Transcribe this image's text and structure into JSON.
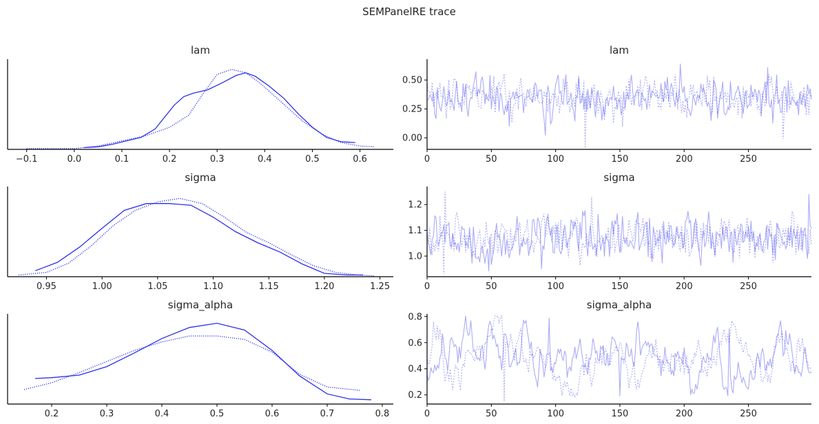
{
  "figure": {
    "title": "SEMPanelRE trace"
  },
  "chart_data": [
    {
      "type": "line",
      "panel": "kde",
      "title": "lam",
      "xlim": [
        -0.14,
        0.67
      ],
      "xticks": [
        -0.1,
        0.0,
        0.1,
        0.2,
        0.3,
        0.4,
        0.5,
        0.6
      ],
      "xtick_labels": [
        "−0.1",
        "0.0",
        "0.1",
        "0.2",
        "0.3",
        "0.4",
        "0.5",
        "0.6"
      ],
      "ylim": [
        0,
        1.06
      ],
      "color": "#2a2eec",
      "series": [
        {
          "style": "solid",
          "x": [
            0.02,
            0.05,
            0.08,
            0.11,
            0.14,
            0.17,
            0.19,
            0.21,
            0.23,
            0.25,
            0.28,
            0.31,
            0.34,
            0.36,
            0.38,
            0.41,
            0.44,
            0.47,
            0.5,
            0.53,
            0.56,
            0.59
          ],
          "y": [
            0.02,
            0.03,
            0.06,
            0.1,
            0.14,
            0.24,
            0.38,
            0.52,
            0.62,
            0.66,
            0.7,
            0.78,
            0.87,
            0.9,
            0.86,
            0.74,
            0.6,
            0.42,
            0.26,
            0.14,
            0.09,
            0.08
          ]
        },
        {
          "style": "dotted",
          "x": [
            -0.1,
            -0.05,
            0.0,
            0.05,
            0.1,
            0.15,
            0.2,
            0.24,
            0.27,
            0.3,
            0.33,
            0.36,
            0.39,
            0.42,
            0.45,
            0.48,
            0.52,
            0.56,
            0.6,
            0.63
          ],
          "y": [
            0.01,
            0.01,
            0.01,
            0.04,
            0.1,
            0.16,
            0.26,
            0.4,
            0.65,
            0.88,
            0.94,
            0.9,
            0.78,
            0.63,
            0.48,
            0.33,
            0.18,
            0.08,
            0.04,
            0.03
          ]
        }
      ]
    },
    {
      "type": "line",
      "panel": "trace",
      "title": "lam",
      "xlim": [
        0,
        299
      ],
      "xticks": [
        0,
        50,
        100,
        150,
        200,
        250
      ],
      "xtick_labels": [
        "0",
        "50",
        "100",
        "150",
        "200",
        "250"
      ],
      "ylim": [
        -0.1,
        0.68
      ],
      "yticks": [
        0.0,
        0.25,
        0.5
      ],
      "ytick_labels": [
        "0.00",
        "0.25",
        "0.50"
      ],
      "n": 300,
      "center": 0.35,
      "spread": 0.09,
      "extremes": [
        {
          "chain": 2,
          "index": 123,
          "value": -0.09
        },
        {
          "chain": 1,
          "index": 197,
          "value": 0.64
        },
        {
          "chain": 1,
          "index": 92,
          "value": 0.02
        },
        {
          "chain": 2,
          "index": 277,
          "value": -0.01
        },
        {
          "chain": 1,
          "index": 265,
          "value": 0.61
        }
      ],
      "color": "#2a2eec"
    },
    {
      "type": "line",
      "panel": "kde",
      "title": "sigma",
      "xlim": [
        0.915,
        1.262
      ],
      "xticks": [
        0.95,
        1.0,
        1.05,
        1.1,
        1.15,
        1.2,
        1.25
      ],
      "xtick_labels": [
        "0.95",
        "1.00",
        "1.05",
        "1.10",
        "1.15",
        "1.20",
        "1.25"
      ],
      "ylim": [
        0,
        1.06
      ],
      "color": "#2a2eec",
      "series": [
        {
          "style": "solid",
          "x": [
            0.94,
            0.96,
            0.98,
            1.0,
            1.02,
            1.04,
            1.06,
            1.08,
            1.1,
            1.12,
            1.14,
            1.16,
            1.18,
            1.2,
            1.22,
            1.235
          ],
          "y": [
            0.07,
            0.17,
            0.35,
            0.57,
            0.78,
            0.86,
            0.86,
            0.84,
            0.7,
            0.53,
            0.4,
            0.29,
            0.15,
            0.04,
            0.02,
            0.02
          ]
        },
        {
          "style": "dotted",
          "x": [
            0.925,
            0.95,
            0.97,
            0.99,
            1.01,
            1.03,
            1.05,
            1.07,
            1.09,
            1.11,
            1.13,
            1.15,
            1.17,
            1.19,
            1.21,
            1.23,
            1.245
          ],
          "y": [
            0.02,
            0.05,
            0.16,
            0.36,
            0.6,
            0.78,
            0.88,
            0.92,
            0.86,
            0.7,
            0.52,
            0.4,
            0.26,
            0.13,
            0.05,
            0.02,
            0.01
          ]
        }
      ]
    },
    {
      "type": "line",
      "panel": "trace",
      "title": "sigma",
      "xlim": [
        0,
        299
      ],
      "xticks": [
        0,
        50,
        100,
        150,
        200,
        250
      ],
      "xtick_labels": [
        "0",
        "50",
        "100",
        "150",
        "200",
        "250"
      ],
      "ylim": [
        0.92,
        1.27
      ],
      "yticks": [
        1.0,
        1.1,
        1.2
      ],
      "ytick_labels": [
        "1.0",
        "1.1",
        "1.2"
      ],
      "n": 300,
      "center": 1.07,
      "spread": 0.045,
      "extremes": [
        {
          "chain": 2,
          "index": 14,
          "value": 1.25
        },
        {
          "chain": 2,
          "index": 13,
          "value": 0.93
        },
        {
          "chain": 2,
          "index": 128,
          "value": 1.23
        },
        {
          "chain": 1,
          "index": 297,
          "value": 1.24
        },
        {
          "chain": 1,
          "index": 89,
          "value": 0.95
        }
      ],
      "color": "#2a2eec"
    },
    {
      "type": "line",
      "panel": "kde",
      "title": "sigma_alpha",
      "xlim": [
        0.12,
        0.82
      ],
      "xticks": [
        0.2,
        0.3,
        0.4,
        0.5,
        0.6,
        0.7,
        0.8
      ],
      "xtick_labels": [
        "0.2",
        "0.3",
        "0.4",
        "0.5",
        "0.6",
        "0.7",
        "0.8"
      ],
      "ylim": [
        0,
        1.06
      ],
      "color": "#2a2eec",
      "series": [
        {
          "style": "solid",
          "x": [
            0.17,
            0.2,
            0.25,
            0.3,
            0.35,
            0.4,
            0.45,
            0.5,
            0.55,
            0.6,
            0.65,
            0.7,
            0.74,
            0.78
          ],
          "y": [
            0.3,
            0.31,
            0.34,
            0.44,
            0.6,
            0.77,
            0.9,
            0.95,
            0.87,
            0.63,
            0.33,
            0.12,
            0.06,
            0.05
          ]
        },
        {
          "style": "dotted",
          "x": [
            0.15,
            0.2,
            0.25,
            0.3,
            0.35,
            0.4,
            0.45,
            0.5,
            0.55,
            0.6,
            0.65,
            0.7,
            0.76
          ],
          "y": [
            0.17,
            0.25,
            0.37,
            0.5,
            0.63,
            0.73,
            0.8,
            0.8,
            0.76,
            0.61,
            0.35,
            0.2,
            0.16
          ]
        }
      ]
    },
    {
      "type": "line",
      "panel": "trace",
      "title": "sigma_alpha",
      "xlim": [
        0,
        299
      ],
      "xticks": [
        0,
        50,
        100,
        150,
        200,
        250
      ],
      "xtick_labels": [
        "0",
        "50",
        "100",
        "150",
        "200",
        "250"
      ],
      "ylim": [
        0.13,
        0.82
      ],
      "yticks": [
        0.2,
        0.4,
        0.6,
        0.8
      ],
      "ytick_labels": [
        "0.2",
        "0.4",
        "0.6",
        "0.8"
      ],
      "n": 300,
      "center": 0.47,
      "spread": 0.12,
      "extremes": [
        {
          "chain": 1,
          "index": 95,
          "value": 0.79
        },
        {
          "chain": 2,
          "index": 60,
          "value": 0.15
        },
        {
          "chain": 1,
          "index": 150,
          "value": 0.19
        },
        {
          "chain": 2,
          "index": 5,
          "value": 0.76
        },
        {
          "chain": 1,
          "index": 235,
          "value": 0.71
        }
      ],
      "color": "#2a2eec"
    }
  ]
}
